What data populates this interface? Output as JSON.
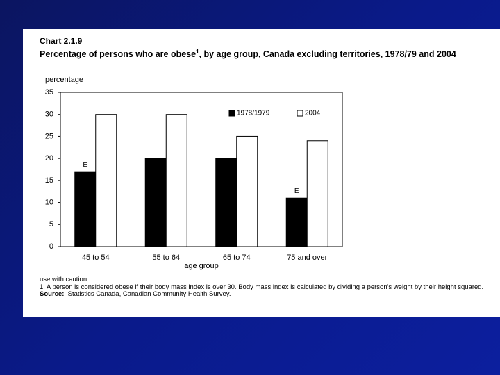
{
  "chart_data": {
    "type": "bar",
    "chart_label": "Chart 2.1.9",
    "title": "Percentage of persons who are obese",
    "title_superscript": "1",
    "title_rest": ", by age group, Canada excluding territories, 1978/79 and 2004",
    "y_label": "percentage",
    "x_label": "age group",
    "categories": [
      "45 to 54",
      "55 to 64",
      "65 to 74",
      "75 and over"
    ],
    "series": [
      {
        "name": "1978/1979",
        "color": "#000000",
        "values": [
          17,
          20,
          20,
          11
        ],
        "flags": [
          "E",
          null,
          null,
          "E"
        ]
      },
      {
        "name": "2004",
        "color": "#ffffff",
        "values": [
          30,
          30,
          25,
          24
        ]
      }
    ],
    "ylim": [
      0,
      35
    ],
    "yticks": [
      0,
      5,
      10,
      15,
      20,
      25,
      30,
      35
    ],
    "grid": false,
    "legend": "top-right",
    "notes": [
      "use with caution",
      "1. A person is considered obese if their body mass index is over 30. Body mass index is calculated by dividing a person's weight by their height squared."
    ],
    "source_label": "Source:",
    "source": "Statistics Canada, Canadian Community Health Survey."
  }
}
